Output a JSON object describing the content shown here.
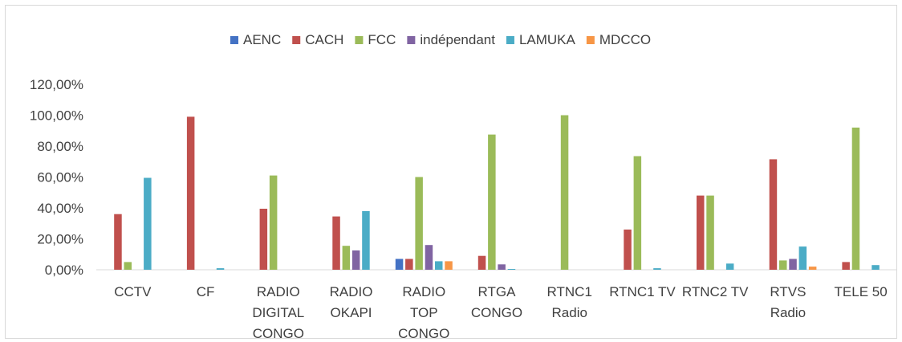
{
  "chart_data": {
    "type": "bar",
    "title": "",
    "xlabel": "",
    "ylabel": "",
    "ylim": [
      0,
      1.2
    ],
    "y_ticks": [
      "0,00%",
      "20,00%",
      "40,00%",
      "60,00%",
      "80,00%",
      "100,00%",
      "120,00%"
    ],
    "y_tick_values": [
      0,
      0.2,
      0.4,
      0.6,
      0.8,
      1.0,
      1.2
    ],
    "grid": false,
    "legend_position": "top",
    "categories": [
      [
        "CCTV"
      ],
      [
        "CF"
      ],
      [
        "RADIO",
        "DIGITAL",
        "CONGO"
      ],
      [
        "RADIO",
        "OKAPI"
      ],
      [
        "RADIO",
        "TOP",
        "CONGO"
      ],
      [
        "RTGA",
        "CONGO"
      ],
      [
        "RTNC1",
        "Radio"
      ],
      [
        "RTNC1 TV"
      ],
      [
        "RTNC2 TV"
      ],
      [
        "RTVS",
        "Radio"
      ],
      [
        "TELE 50"
      ]
    ],
    "series": [
      {
        "name": "AENC",
        "color": "#4472c4",
        "values": [
          0,
          0,
          0,
          0,
          0.07,
          0,
          0,
          0,
          0,
          0,
          0
        ]
      },
      {
        "name": "CACH",
        "color": "#c0504d",
        "values": [
          0.36,
          0.99,
          0.395,
          0.345,
          0.07,
          0.09,
          0,
          0.26,
          0.48,
          0.715,
          0.05
        ]
      },
      {
        "name": "FCC",
        "color": "#9bbb59",
        "values": [
          0.05,
          0,
          0.61,
          0.155,
          0.6,
          0.875,
          1.0,
          0.735,
          0.48,
          0.06,
          0.92
        ]
      },
      {
        "name": "indépendant",
        "color": "#8064a2",
        "values": [
          0,
          0,
          0,
          0.125,
          0.16,
          0.035,
          0,
          0,
          0,
          0.07,
          0
        ]
      },
      {
        "name": "LAMUKA",
        "color": "#4bacc6",
        "values": [
          0.595,
          0.01,
          0,
          0.38,
          0.055,
          0.005,
          0,
          0.01,
          0.04,
          0.15,
          0.03
        ]
      },
      {
        "name": "MDCCO",
        "color": "#f79646",
        "values": [
          0,
          0,
          0,
          0,
          0.055,
          0,
          0,
          0,
          0,
          0.02,
          0
        ]
      }
    ]
  }
}
